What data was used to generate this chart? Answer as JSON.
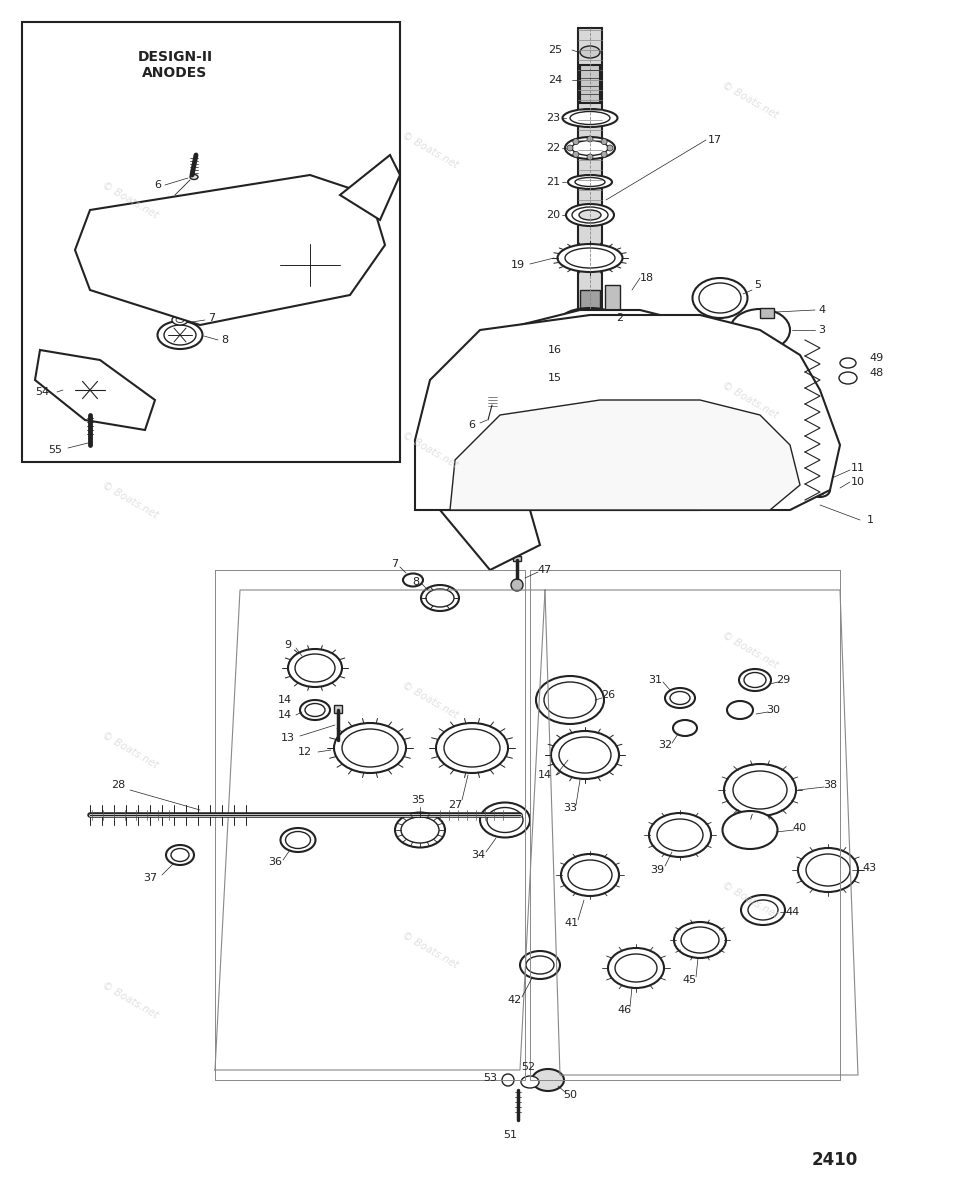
{
  "background_color": "#ffffff",
  "line_color": "#222222",
  "diagram_number": "2410",
  "watermark_text": "© Boats.net",
  "watermark_color": "#cccccc",
  "inset_label": "DESIGN-II\nANODES",
  "fig_width": 9.54,
  "fig_height": 12.0,
  "dpi": 100
}
